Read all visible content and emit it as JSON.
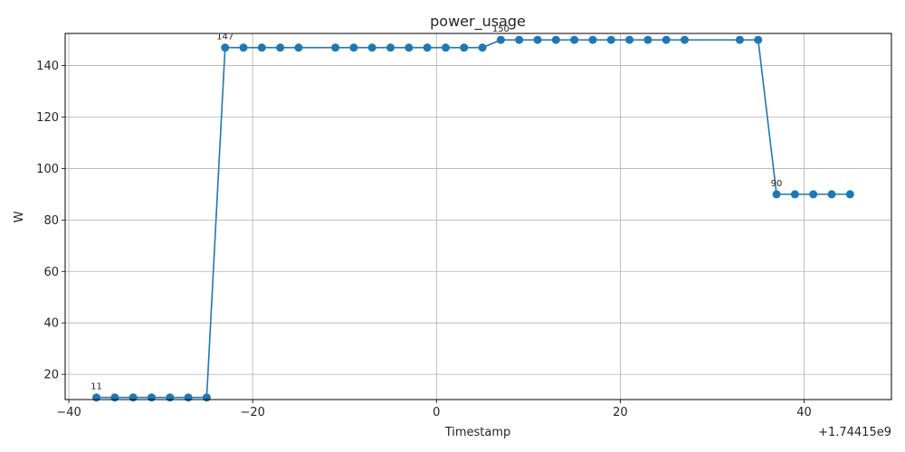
{
  "chart_data": {
    "type": "line",
    "title": "power_usage",
    "xlabel": "Timestamp",
    "ylabel": "W",
    "x_offset_label": "+1.74415e9",
    "xlim": [
      -40.4,
      49.5
    ],
    "ylim": [
      10.2,
      152.5
    ],
    "x_ticks": [
      -40,
      -20,
      0,
      20,
      40
    ],
    "x_tick_labels": [
      "−40",
      "−20",
      "0",
      "20",
      "40"
    ],
    "y_ticks": [
      20,
      40,
      60,
      80,
      100,
      120,
      140
    ],
    "y_tick_labels": [
      "20",
      "40",
      "60",
      "80",
      "100",
      "120",
      "140"
    ],
    "grid": true,
    "color": "#1f77b4",
    "series": [
      {
        "x": [
          -37,
          -35,
          -33,
          -31,
          -29,
          -27,
          -25,
          -23,
          -21,
          -19,
          -17,
          -15,
          -11,
          -9,
          -7,
          -5,
          -3,
          -1,
          1,
          3,
          5,
          7,
          9,
          11,
          13,
          15,
          17,
          19,
          21,
          23,
          25,
          27,
          33,
          35,
          37,
          39,
          41,
          43,
          45
        ],
        "y": [
          11,
          11,
          11,
          11,
          11,
          11,
          11,
          147,
          147,
          147,
          147,
          147,
          147,
          147,
          147,
          147,
          147,
          147,
          147,
          147,
          147,
          150,
          150,
          150,
          150,
          150,
          150,
          150,
          150,
          150,
          150,
          150,
          150,
          150,
          90,
          90,
          90,
          90,
          90
        ]
      }
    ],
    "annotations": [
      {
        "x": -37,
        "y": 11,
        "text": "11"
      },
      {
        "x": -23,
        "y": 147,
        "text": "147"
      },
      {
        "x": 7,
        "y": 150,
        "text": "150"
      },
      {
        "x": 37,
        "y": 90,
        "text": "90"
      }
    ]
  }
}
